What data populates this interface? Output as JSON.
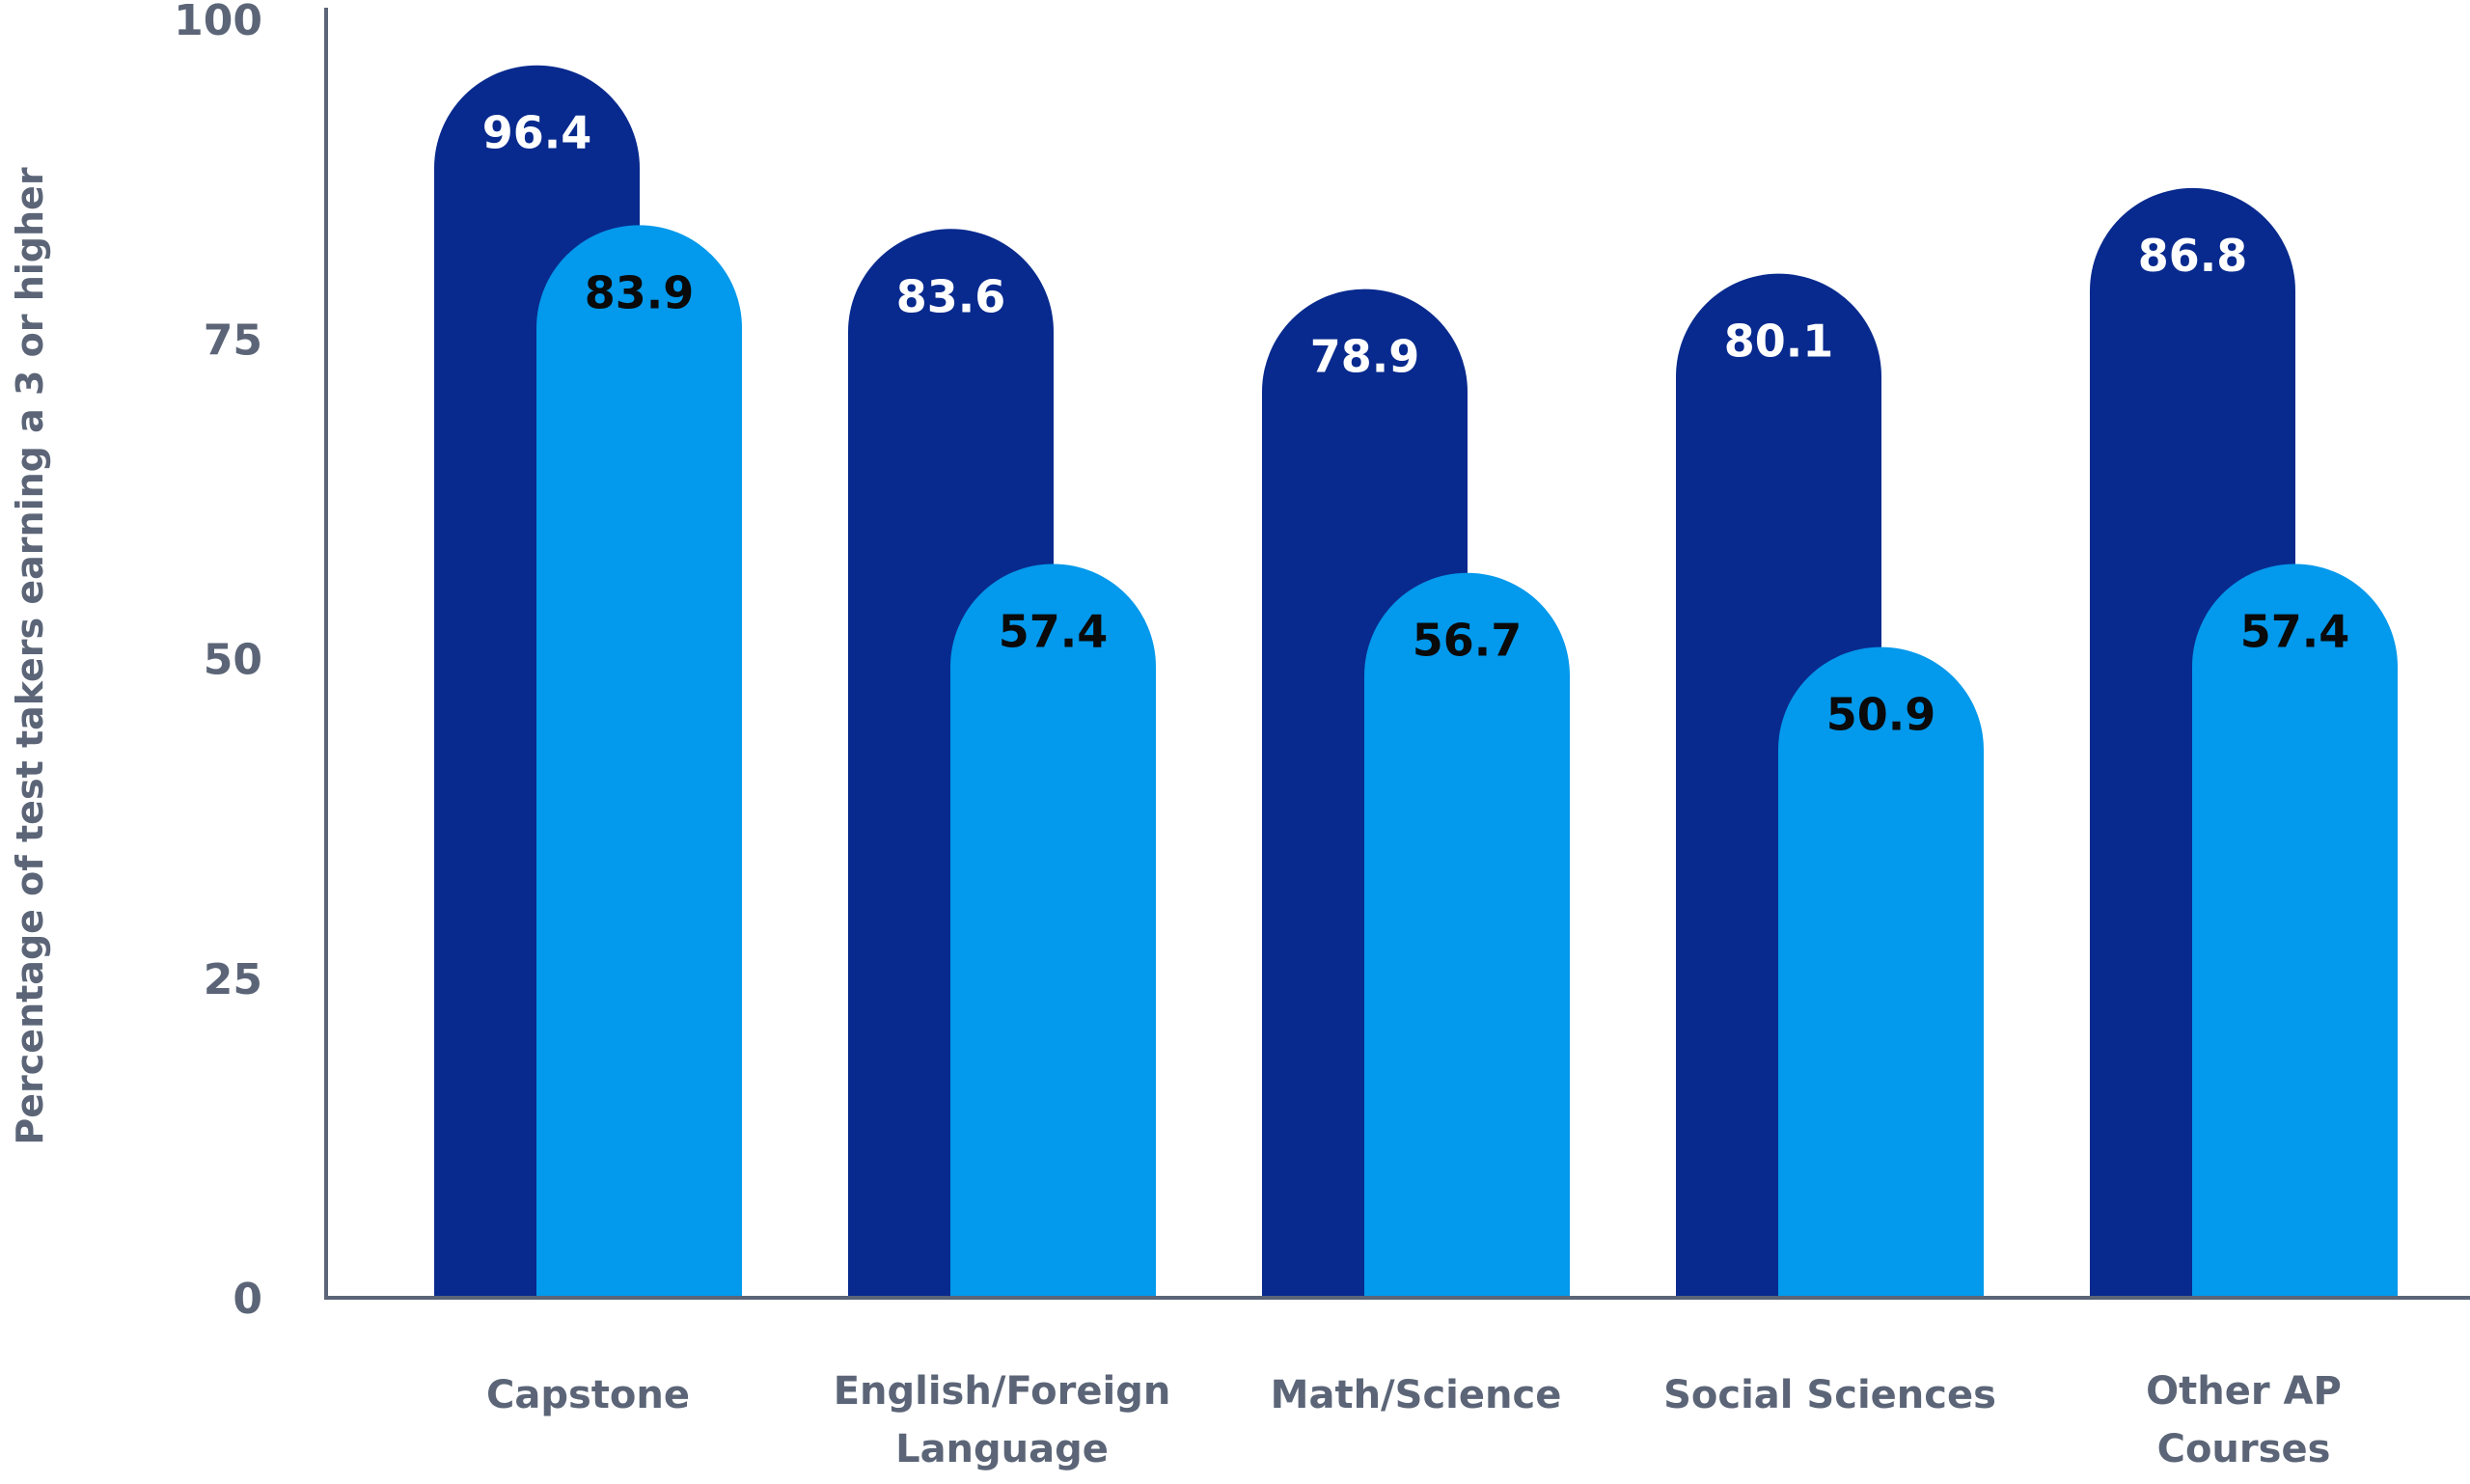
{
  "chart_data": {
    "type": "bar",
    "title": "",
    "xlabel": "",
    "ylabel": "Percentage of test takers earning a 3 or higher",
    "ylim": [
      0,
      100
    ],
    "yticks": [
      "0",
      "25",
      "50",
      "75",
      "100"
    ],
    "grid": false,
    "categories": [
      [
        "Capstone"
      ],
      [
        "English/Foreign",
        "Language"
      ],
      [
        "Math/Science"
      ],
      [
        "Social Sciences"
      ],
      [
        "Other AP",
        "Courses"
      ]
    ],
    "series": [
      {
        "values": [
          96.4,
          83.6,
          78.9,
          80.1,
          86.8
        ],
        "labels": [
          "96.4",
          "83.6",
          "78.9",
          "80.1",
          "86.8"
        ],
        "color": "#082a8e",
        "label_color": "#ffffff"
      },
      {
        "values": [
          83.9,
          57.4,
          56.7,
          50.9,
          57.4
        ],
        "labels": [
          "83.9",
          "57.4",
          "56.7",
          "50.9",
          "57.4"
        ],
        "color": "#0399ec",
        "label_color": "#0a0a0a"
      }
    ]
  },
  "colors": {
    "axis": "#5b6577",
    "text": "#5b6577"
  }
}
